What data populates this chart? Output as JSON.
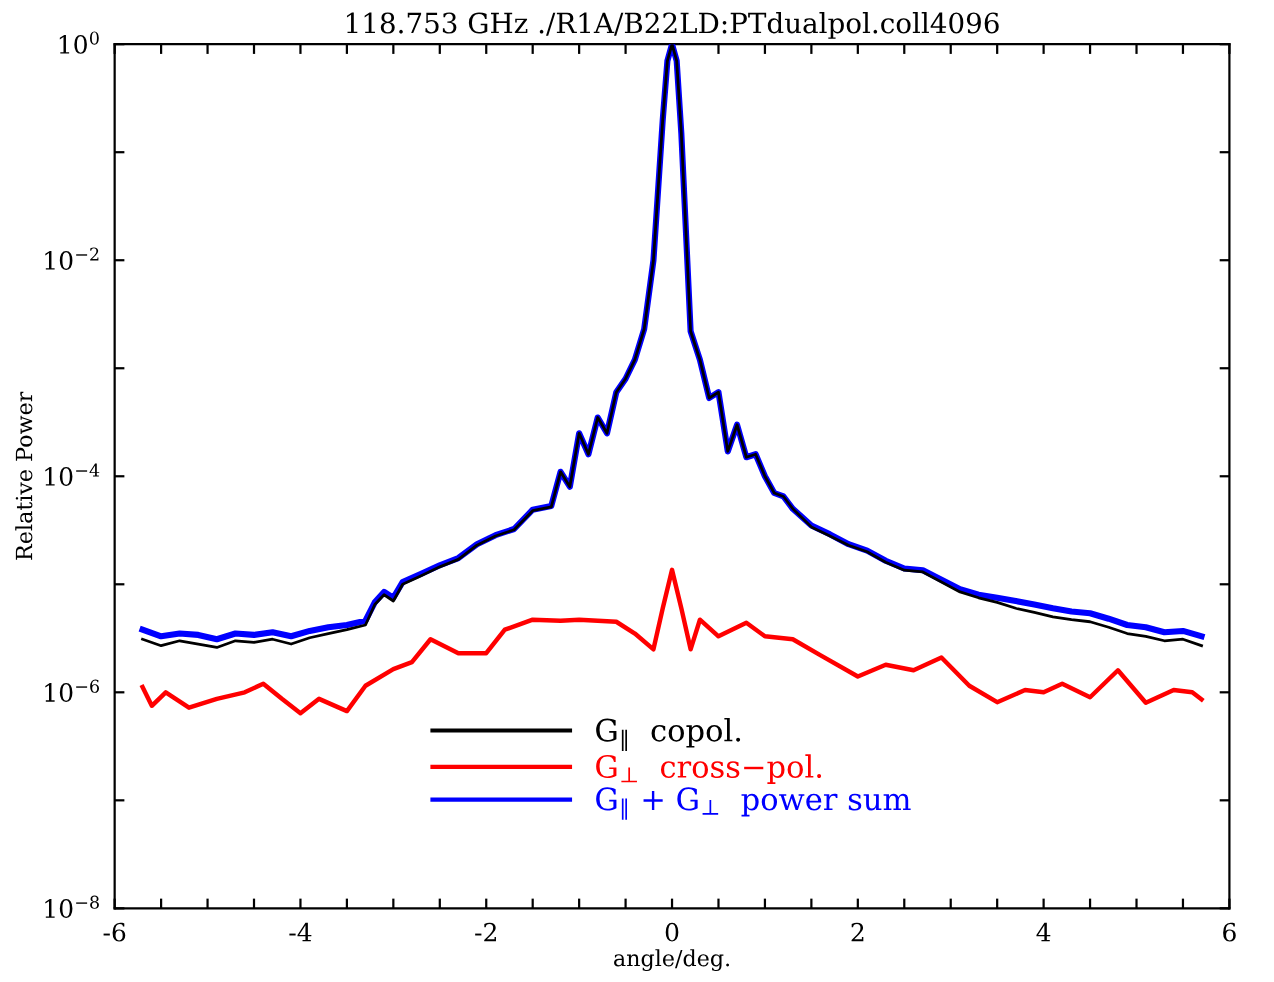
{
  "chart_data": {
    "type": "line",
    "title": "118.753 GHz ./R1A/B22LD:PTdualpol.coll4096",
    "xlabel": "angle/deg.",
    "ylabel": "Relative Power",
    "log": "y",
    "grid": false,
    "legend": "bottom",
    "marker": "none",
    "line_style": "solid",
    "xlim": [
      -6,
      6
    ],
    "ylim": [
      1e-08,
      1
    ],
    "xticks": [
      -6,
      {
        "value": -5.5,
        "label": null
      },
      {
        "value": -5,
        "label": null
      },
      {
        "value": -4.5,
        "label": null
      },
      -4,
      {
        "value": -3.5,
        "label": null
      },
      {
        "value": -3,
        "label": null
      },
      {
        "value": -2.5,
        "label": null
      },
      -2,
      {
        "value": -1.5,
        "label": null
      },
      {
        "value": -1,
        "label": null
      },
      {
        "value": -0.5,
        "label": null
      },
      0,
      {
        "value": 0.5,
        "label": null
      },
      {
        "value": 1,
        "label": null
      },
      {
        "value": 1.5,
        "label": null
      },
      2,
      {
        "value": 2.5,
        "label": null
      },
      {
        "value": 3,
        "label": null
      },
      {
        "value": 3.5,
        "label": null
      },
      4,
      {
        "value": 4.5,
        "label": null
      },
      {
        "value": 5,
        "label": null
      },
      {
        "value": 5.5,
        "label": null
      },
      6
    ],
    "yticks": [
      {
        "value": 1e-08,
        "label": "10$^{−8}$"
      },
      {
        "value": 1e-07,
        "label": null
      },
      {
        "value": 1e-06,
        "label": "10$^{−6}$"
      },
      {
        "value": 1e-05,
        "label": null
      },
      {
        "value": 0.0001,
        "label": "10$^{−4}$"
      },
      {
        "value": 0.001,
        "label": null
      },
      {
        "value": 0.01,
        "label": "10$^{−2}$"
      },
      {
        "value": 0.1,
        "label": null
      },
      {
        "value": 1,
        "label": "10$^{0}$"
      }
    ],
    "series": [
      {
        "name": "G$_{‖}$  copol.",
        "color": "#000000",
        "x": [
          -5.7,
          -5.5,
          -5.3,
          -5.1,
          -4.9,
          -4.7,
          -4.5,
          -4.3,
          -4.1,
          -3.9,
          -3.7,
          -3.5,
          -3.3,
          -3.2,
          -3.1,
          -3.0,
          -2.9,
          -2.7,
          -2.5,
          -2.3,
          -2.1,
          -1.9,
          -1.7,
          -1.5,
          -1.3,
          -1.2,
          -1.1,
          -1.0,
          -0.9,
          -0.8,
          -0.7,
          -0.6,
          -0.5,
          -0.4,
          -0.3,
          -0.2,
          -0.1,
          -0.05,
          0,
          0.05,
          0.1,
          0.2,
          0.3,
          0.4,
          0.5,
          0.6,
          0.7,
          0.8,
          0.9,
          1.0,
          1.1,
          1.2,
          1.3,
          1.5,
          1.7,
          1.9,
          2.1,
          2.3,
          2.5,
          2.7,
          2.9,
          3.1,
          3.3,
          3.5,
          3.7,
          3.9,
          4.1,
          4.3,
          4.5,
          4.7,
          4.9,
          5.1,
          5.3,
          5.5,
          5.7
        ],
        "values": [
          3.1e-06,
          2.7e-06,
          3e-06,
          2.8e-06,
          2.6e-06,
          3e-06,
          2.9e-06,
          3.1e-06,
          2.8e-06,
          3.2e-06,
          3.5e-06,
          3.8e-06,
          4.2e-06,
          6.5e-06,
          8e-06,
          7e-06,
          1e-05,
          1.2e-05,
          1.45e-05,
          1.7e-05,
          2.3e-05,
          2.8e-05,
          3.2e-05,
          4.8e-05,
          5.2e-05,
          0.00011,
          8e-05,
          0.00025,
          0.00016,
          0.00035,
          0.00025,
          0.0006,
          0.0008,
          0.0012,
          0.0023,
          0.01,
          0.2,
          0.7,
          1.0,
          0.7,
          0.15,
          0.0022,
          0.0012,
          0.00053,
          0.0006,
          0.00017,
          0.0003,
          0.00015,
          0.00016,
          0.0001,
          7e-05,
          6.5e-05,
          5e-05,
          3.4e-05,
          2.8e-05,
          2.3e-05,
          2e-05,
          1.6e-05,
          1.35e-05,
          1.3e-05,
          1.05e-05,
          8.5e-06,
          7.5e-06,
          6.8e-06,
          6e-06,
          5.5e-06,
          5e-06,
          4.7e-06,
          4.5e-06,
          4e-06,
          3.5e-06,
          3.3e-06,
          3e-06,
          3.1e-06,
          2.7e-06
        ]
      },
      {
        "name": "G$_{⊥}$  cross−pol.",
        "color": "#ff0000",
        "x": [
          -5.7,
          -5.6,
          -5.45,
          -5.2,
          -4.9,
          -4.6,
          -4.4,
          -4.2,
          -4.0,
          -3.8,
          -3.5,
          -3.3,
          -3.0,
          -2.8,
          -2.6,
          -2.3,
          -2.0,
          -1.8,
          -1.5,
          -1.2,
          -1.0,
          -0.6,
          -0.4,
          -0.2,
          -0.1,
          0,
          0.1,
          0.2,
          0.3,
          0.5,
          0.8,
          1.0,
          1.3,
          1.6,
          2.0,
          2.3,
          2.6,
          2.9,
          3.2,
          3.5,
          3.8,
          4.0,
          4.2,
          4.5,
          4.8,
          5.1,
          5.4,
          5.6,
          5.7
        ],
        "values": [
          1.12e-06,
          7.5e-07,
          1e-06,
          7.2e-07,
          8.7e-07,
          1e-06,
          1.2e-06,
          8.7e-07,
          6.4e-07,
          8.7e-07,
          6.7e-07,
          1.15e-06,
          1.64e-06,
          1.9e-06,
          3.1e-06,
          2.3e-06,
          2.3e-06,
          3.8e-06,
          4.7e-06,
          4.6e-06,
          4.7e-06,
          4.5e-06,
          3.5e-06,
          2.5e-06,
          6e-06,
          1.36e-05,
          6e-06,
          2.5e-06,
          4.7e-06,
          3.3e-06,
          4.4e-06,
          3.3e-06,
          3.1e-06,
          2.2e-06,
          1.4e-06,
          1.8e-06,
          1.6e-06,
          2.1e-06,
          1.15e-06,
          8.1e-07,
          1.05e-06,
          1e-06,
          1.2e-06,
          9e-07,
          1.6e-06,
          8e-07,
          1.05e-06,
          1e-06,
          8.6e-07
        ]
      },
      {
        "name": "G$_{‖}$ + G$_{⊥}$  power sum",
        "color": "#0000ff",
        "x": [
          -5.7,
          -5.5,
          -5.3,
          -5.1,
          -4.9,
          -4.7,
          -4.5,
          -4.3,
          -4.1,
          -3.9,
          -3.7,
          -3.5,
          -3.3,
          -3.2,
          -3.1,
          -3.0,
          -2.9,
          -2.7,
          -2.5,
          -2.3,
          -2.1,
          -1.9,
          -1.7,
          -1.5,
          -1.3,
          -1.2,
          -1.1,
          -1.0,
          -0.9,
          -0.8,
          -0.7,
          -0.6,
          -0.5,
          -0.4,
          -0.3,
          -0.2,
          -0.1,
          -0.05,
          0,
          0.05,
          0.1,
          0.2,
          0.3,
          0.4,
          0.5,
          0.6,
          0.7,
          0.8,
          0.9,
          1.0,
          1.1,
          1.2,
          1.3,
          1.5,
          1.7,
          1.9,
          2.1,
          2.3,
          2.5,
          2.7,
          2.9,
          3.1,
          3.3,
          3.5,
          3.7,
          3.9,
          4.1,
          4.3,
          4.5,
          4.7,
          4.9,
          5.1,
          5.3,
          5.5,
          5.7
        ],
        "values": [
          3.8e-06,
          3.3e-06,
          3.5e-06,
          3.4e-06,
          3.1e-06,
          3.5e-06,
          3.4e-06,
          3.6e-06,
          3.3e-06,
          3.7e-06,
          4e-06,
          4.2e-06,
          4.6e-06,
          6.8e-06,
          8.5e-06,
          7.5e-06,
          1.05e-05,
          1.25e-05,
          1.5e-05,
          1.75e-05,
          2.35e-05,
          2.85e-05,
          3.25e-05,
          4.9e-05,
          5.3e-05,
          0.00011,
          8e-05,
          0.00025,
          0.00016,
          0.00035,
          0.00025,
          0.0006,
          0.0008,
          0.0012,
          0.0023,
          0.01,
          0.2,
          0.7,
          1.0,
          0.7,
          0.15,
          0.0022,
          0.0012,
          0.00053,
          0.0006,
          0.00017,
          0.0003,
          0.00015,
          0.00016,
          0.0001,
          7e-05,
          6.5e-05,
          5e-05,
          3.5e-05,
          2.9e-05,
          2.35e-05,
          2.05e-05,
          1.65e-05,
          1.4e-05,
          1.35e-05,
          1.1e-05,
          9e-06,
          8e-06,
          7.5e-06,
          7e-06,
          6.5e-06,
          6e-06,
          5.6e-06,
          5.4e-06,
          4.8e-06,
          4.2e-06,
          4e-06,
          3.6e-06,
          3.7e-06,
          3.3e-06
        ]
      }
    ]
  }
}
